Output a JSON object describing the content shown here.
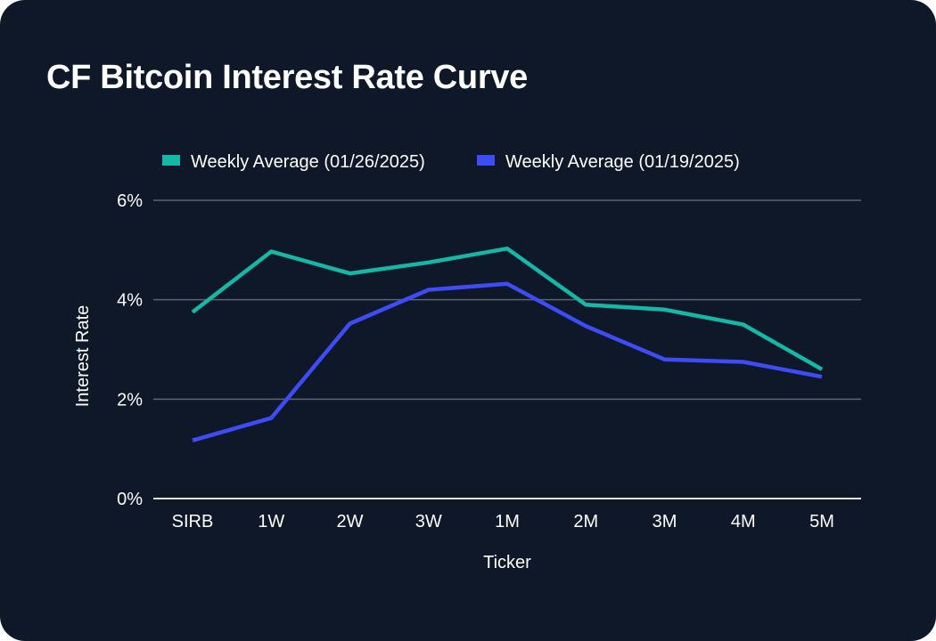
{
  "card": {
    "title": "CF Bitcoin Interest Rate Curve"
  },
  "colors": {
    "background": "#0f1828",
    "series_current": "#14b8a6",
    "series_previous": "#3d4cf5",
    "grid": "#5b6472",
    "baseline": "#e5e7eb"
  },
  "chart_data": {
    "type": "line",
    "title": "CF Bitcoin Interest Rate Curve",
    "xlabel": "Ticker",
    "ylabel": "Interest Rate",
    "categories": [
      "SIRB",
      "1W",
      "2W",
      "3W",
      "1M",
      "2M",
      "3M",
      "4M",
      "5M"
    ],
    "y_ticks": [
      0,
      2,
      4,
      6
    ],
    "y_tick_labels": [
      "0%",
      "2%",
      "4%",
      "6%"
    ],
    "ylim": [
      0,
      6
    ],
    "grid": true,
    "legend_position": "top-center",
    "series": [
      {
        "name": "Weekly Average (01/26/2025)",
        "color": "#14b8a6",
        "values": [
          3.75,
          4.97,
          4.53,
          4.75,
          5.03,
          3.9,
          3.8,
          3.5,
          2.6
        ]
      },
      {
        "name": "Weekly Average (01/19/2025)",
        "color": "#3d4cf5",
        "values": [
          1.17,
          1.62,
          3.52,
          4.2,
          4.32,
          3.47,
          2.8,
          2.75,
          2.45
        ]
      }
    ]
  }
}
